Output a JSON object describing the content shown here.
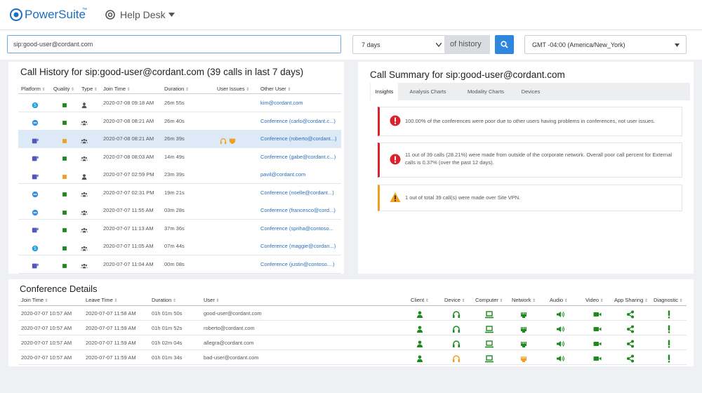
{
  "header": {
    "brand": "PowerSuite",
    "brand_mark": "™",
    "menu": "Help Desk"
  },
  "toolbar": {
    "search": "sip:good-user@cordant.com",
    "period": "7 days",
    "period_suffix": "of history",
    "timezone": "GMT -04:00 (America/New_York)"
  },
  "call_history": {
    "title": "Call History for sip:good-user@cordant.com (39 calls in last 7 days)",
    "columns": [
      "Platform",
      "Quality",
      "Type",
      "Join Time",
      "Duration",
      "User Issues",
      "Other User"
    ],
    "rows": [
      {
        "platform": "skype",
        "quality": "good",
        "type": "single",
        "join_time": "2020-07-08 09:18 AM",
        "duration": "26m 55s",
        "user_issues": false,
        "selected": false,
        "other_user": "kim@cordant.com"
      },
      {
        "platform": "webex",
        "quality": "good",
        "type": "group",
        "join_time": "2020-07-08 08:21 AM",
        "duration": "26m 40s",
        "user_issues": false,
        "selected": false,
        "other_user": "Conference (carlo@cordant.c...)"
      },
      {
        "platform": "teams",
        "quality": "warn",
        "type": "group",
        "join_time": "2020-07-08 08:21 AM",
        "duration": "26m 39s",
        "user_issues": true,
        "selected": true,
        "other_user": "Conference (roberto@cordant...)"
      },
      {
        "platform": "teams",
        "quality": "good",
        "type": "group",
        "join_time": "2020-07-08 08:03 AM",
        "duration": "14m 49s",
        "user_issues": false,
        "selected": false,
        "other_user": "Conference (gabe@cordant.c...)"
      },
      {
        "platform": "teams",
        "quality": "warn",
        "type": "single",
        "join_time": "2020-07-07 02:59 PM",
        "duration": "23m 39s",
        "user_issues": false,
        "selected": false,
        "other_user": "pavil@cordant.com"
      },
      {
        "platform": "webex",
        "quality": "good",
        "type": "group",
        "join_time": "2020-07-07 02:31 PM",
        "duration": "19m 21s",
        "user_issues": false,
        "selected": false,
        "other_user": "Conference (noelle@cordant...)"
      },
      {
        "platform": "webex",
        "quality": "good",
        "type": "group",
        "join_time": "2020-07-07 11:55 AM",
        "duration": "03m 28s",
        "user_issues": false,
        "selected": false,
        "other_user": "Conference (francesco@cord...)"
      },
      {
        "platform": "teams",
        "quality": "good",
        "type": "group",
        "join_time": "2020-07-07 11:13 AM",
        "duration": "37m 36s",
        "user_issues": false,
        "selected": false,
        "other_user": "Conference (spriha@contoso..."
      },
      {
        "platform": "skype",
        "quality": "good",
        "type": "group",
        "join_time": "2020-07-07 11:05 AM",
        "duration": "07m 44s",
        "user_issues": false,
        "selected": false,
        "other_user": "Conference (maggie@cordan...)"
      },
      {
        "platform": "teams",
        "quality": "good",
        "type": "group",
        "join_time": "2020-07-07 11:04 AM",
        "duration": "00m 08s",
        "user_issues": false,
        "selected": false,
        "other_user": "Conference (justin@contoso....)"
      }
    ]
  },
  "call_summary": {
    "title": "Call Summary for sip:good-user@cordant.com",
    "tabs": [
      "Insights",
      "Analysis Charts",
      "Modality Charts",
      "Devices"
    ],
    "insights": [
      {
        "level": "error",
        "text": "100.00% of the conferences were poor due to other users having problems in conferences, not user issues."
      },
      {
        "level": "error",
        "text": "11 out of 39 calls (28.21%) were made from outside of the corporate network. Overall poor call percent for External calls is 0.37% (over the past 12 days)."
      },
      {
        "level": "warning",
        "text": "1 out of total 39 call(s) were made over Site VPN."
      }
    ]
  },
  "conference_details": {
    "title": "Conference Details",
    "columns": [
      "Join Time",
      "Leave Time",
      "Duration",
      "User",
      "Client",
      "Device",
      "Computer",
      "Network",
      "Audio",
      "Video",
      "App Sharing",
      "Diagnostic"
    ],
    "rows": [
      {
        "join_time": "2020-07-07 10:57 AM",
        "leave_time": "2020-07-07 11:58 AM",
        "duration": "01h 01m 50s",
        "user": "good-user@cordant.com",
        "status": [
          "good",
          "good",
          "good",
          "good",
          "good",
          "good",
          "good",
          "good"
        ]
      },
      {
        "join_time": "2020-07-07 10:57 AM",
        "leave_time": "2020-07-07 11:59 AM",
        "duration": "01h 01m 52s",
        "user": "roberto@cordant.com",
        "status": [
          "good",
          "good",
          "good",
          "good",
          "good",
          "good",
          "good",
          "good"
        ]
      },
      {
        "join_time": "2020-07-07 10:57 AM",
        "leave_time": "2020-07-07 11:59 AM",
        "duration": "01h 02m 04s",
        "user": "allegra@cordant.com",
        "status": [
          "good",
          "good",
          "good",
          "good",
          "good",
          "good",
          "good",
          "good"
        ]
      },
      {
        "join_time": "2020-07-07 10:57 AM",
        "leave_time": "2020-07-07 11:59 AM",
        "duration": "01h 01m 34s",
        "user": "bad-user@cordant.com",
        "status": [
          "good",
          "warn",
          "good",
          "warn",
          "good",
          "good",
          "good",
          "good"
        ]
      }
    ]
  }
}
